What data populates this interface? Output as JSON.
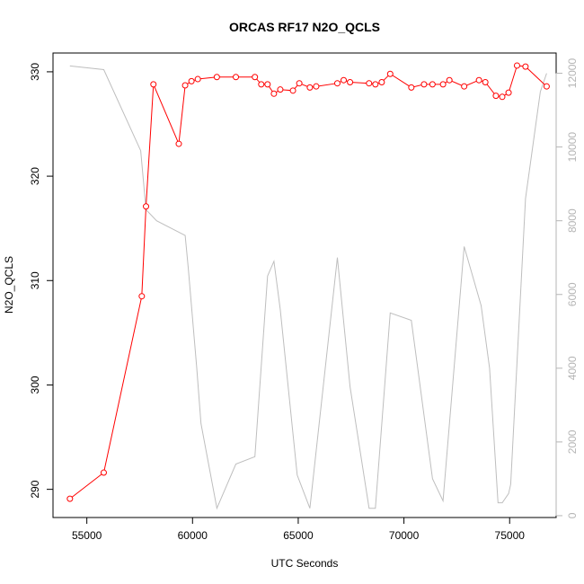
{
  "chart_data": {
    "type": "line",
    "title": "ORCAS RF17 N2O_QCLS",
    "xlabel": "UTC Seconds",
    "ylabel": "N2O_QCLS",
    "y2label": "",
    "xlim": [
      53400,
      77200
    ],
    "ylim": [
      287.3,
      331.8
    ],
    "y2lim": [
      -50,
      12550
    ],
    "x_ticks": [
      55000,
      60000,
      65000,
      70000,
      75000
    ],
    "y_ticks": [
      290,
      300,
      310,
      320,
      330
    ],
    "y2_ticks": [
      0,
      2000,
      4000,
      6000,
      8000,
      10000,
      12000
    ],
    "grid": false,
    "colors": {
      "primary": "#ff0000",
      "secondary": "#bebebe",
      "axis": "#000000",
      "secondary_axis": "#b5b5b5"
    },
    "series": [
      {
        "axis": "left",
        "style": "line+points",
        "x": [
          54200,
          55800,
          57600,
          57800,
          58150,
          59350,
          59650,
          59950,
          60250,
          61150,
          62050,
          62950,
          63250,
          63550,
          63850,
          64150,
          64750,
          65050,
          65550,
          65850,
          66850,
          67150,
          67450,
          68350,
          68650,
          68950,
          69350,
          70350,
          70950,
          71350,
          71850,
          72150,
          72850,
          73550,
          73850,
          74350,
          74650,
          74950,
          75350,
          75750,
          76750
        ],
        "y": [
          289.1,
          291.6,
          308.5,
          317.1,
          328.8,
          323.1,
          328.7,
          329.1,
          329.3,
          329.5,
          329.5,
          329.5,
          328.8,
          328.8,
          327.9,
          328.3,
          328.2,
          328.9,
          328.5,
          328.6,
          328.9,
          329.2,
          329.0,
          328.9,
          328.8,
          329.0,
          329.8,
          328.5,
          328.8,
          328.8,
          328.8,
          329.2,
          328.6,
          329.2,
          329.0,
          327.7,
          327.6,
          328.0,
          330.6,
          330.5,
          328.6
        ]
      },
      {
        "axis": "right",
        "style": "line",
        "x": [
          54200,
          55800,
          57550,
          57800,
          58300,
          59650,
          59800,
          60200,
          60400,
          61150,
          62050,
          62950,
          63550,
          63850,
          64150,
          64950,
          65550,
          66850,
          67450,
          68350,
          68650,
          69350,
          70350,
          71350,
          71850,
          72850,
          73650,
          74050,
          74450,
          74650,
          74950,
          75050,
          75750,
          76450,
          76750
        ],
        "y": [
          12200,
          12100,
          9900,
          8300,
          8000,
          7600,
          6700,
          4000,
          2500,
          200,
          1400,
          1600,
          6500,
          6900,
          5600,
          1100,
          200,
          7000,
          3500,
          200,
          200,
          5500,
          5300,
          1000,
          400,
          7300,
          5700,
          4000,
          350,
          350,
          600,
          850,
          8600,
          11500,
          12000
        ]
      }
    ]
  }
}
